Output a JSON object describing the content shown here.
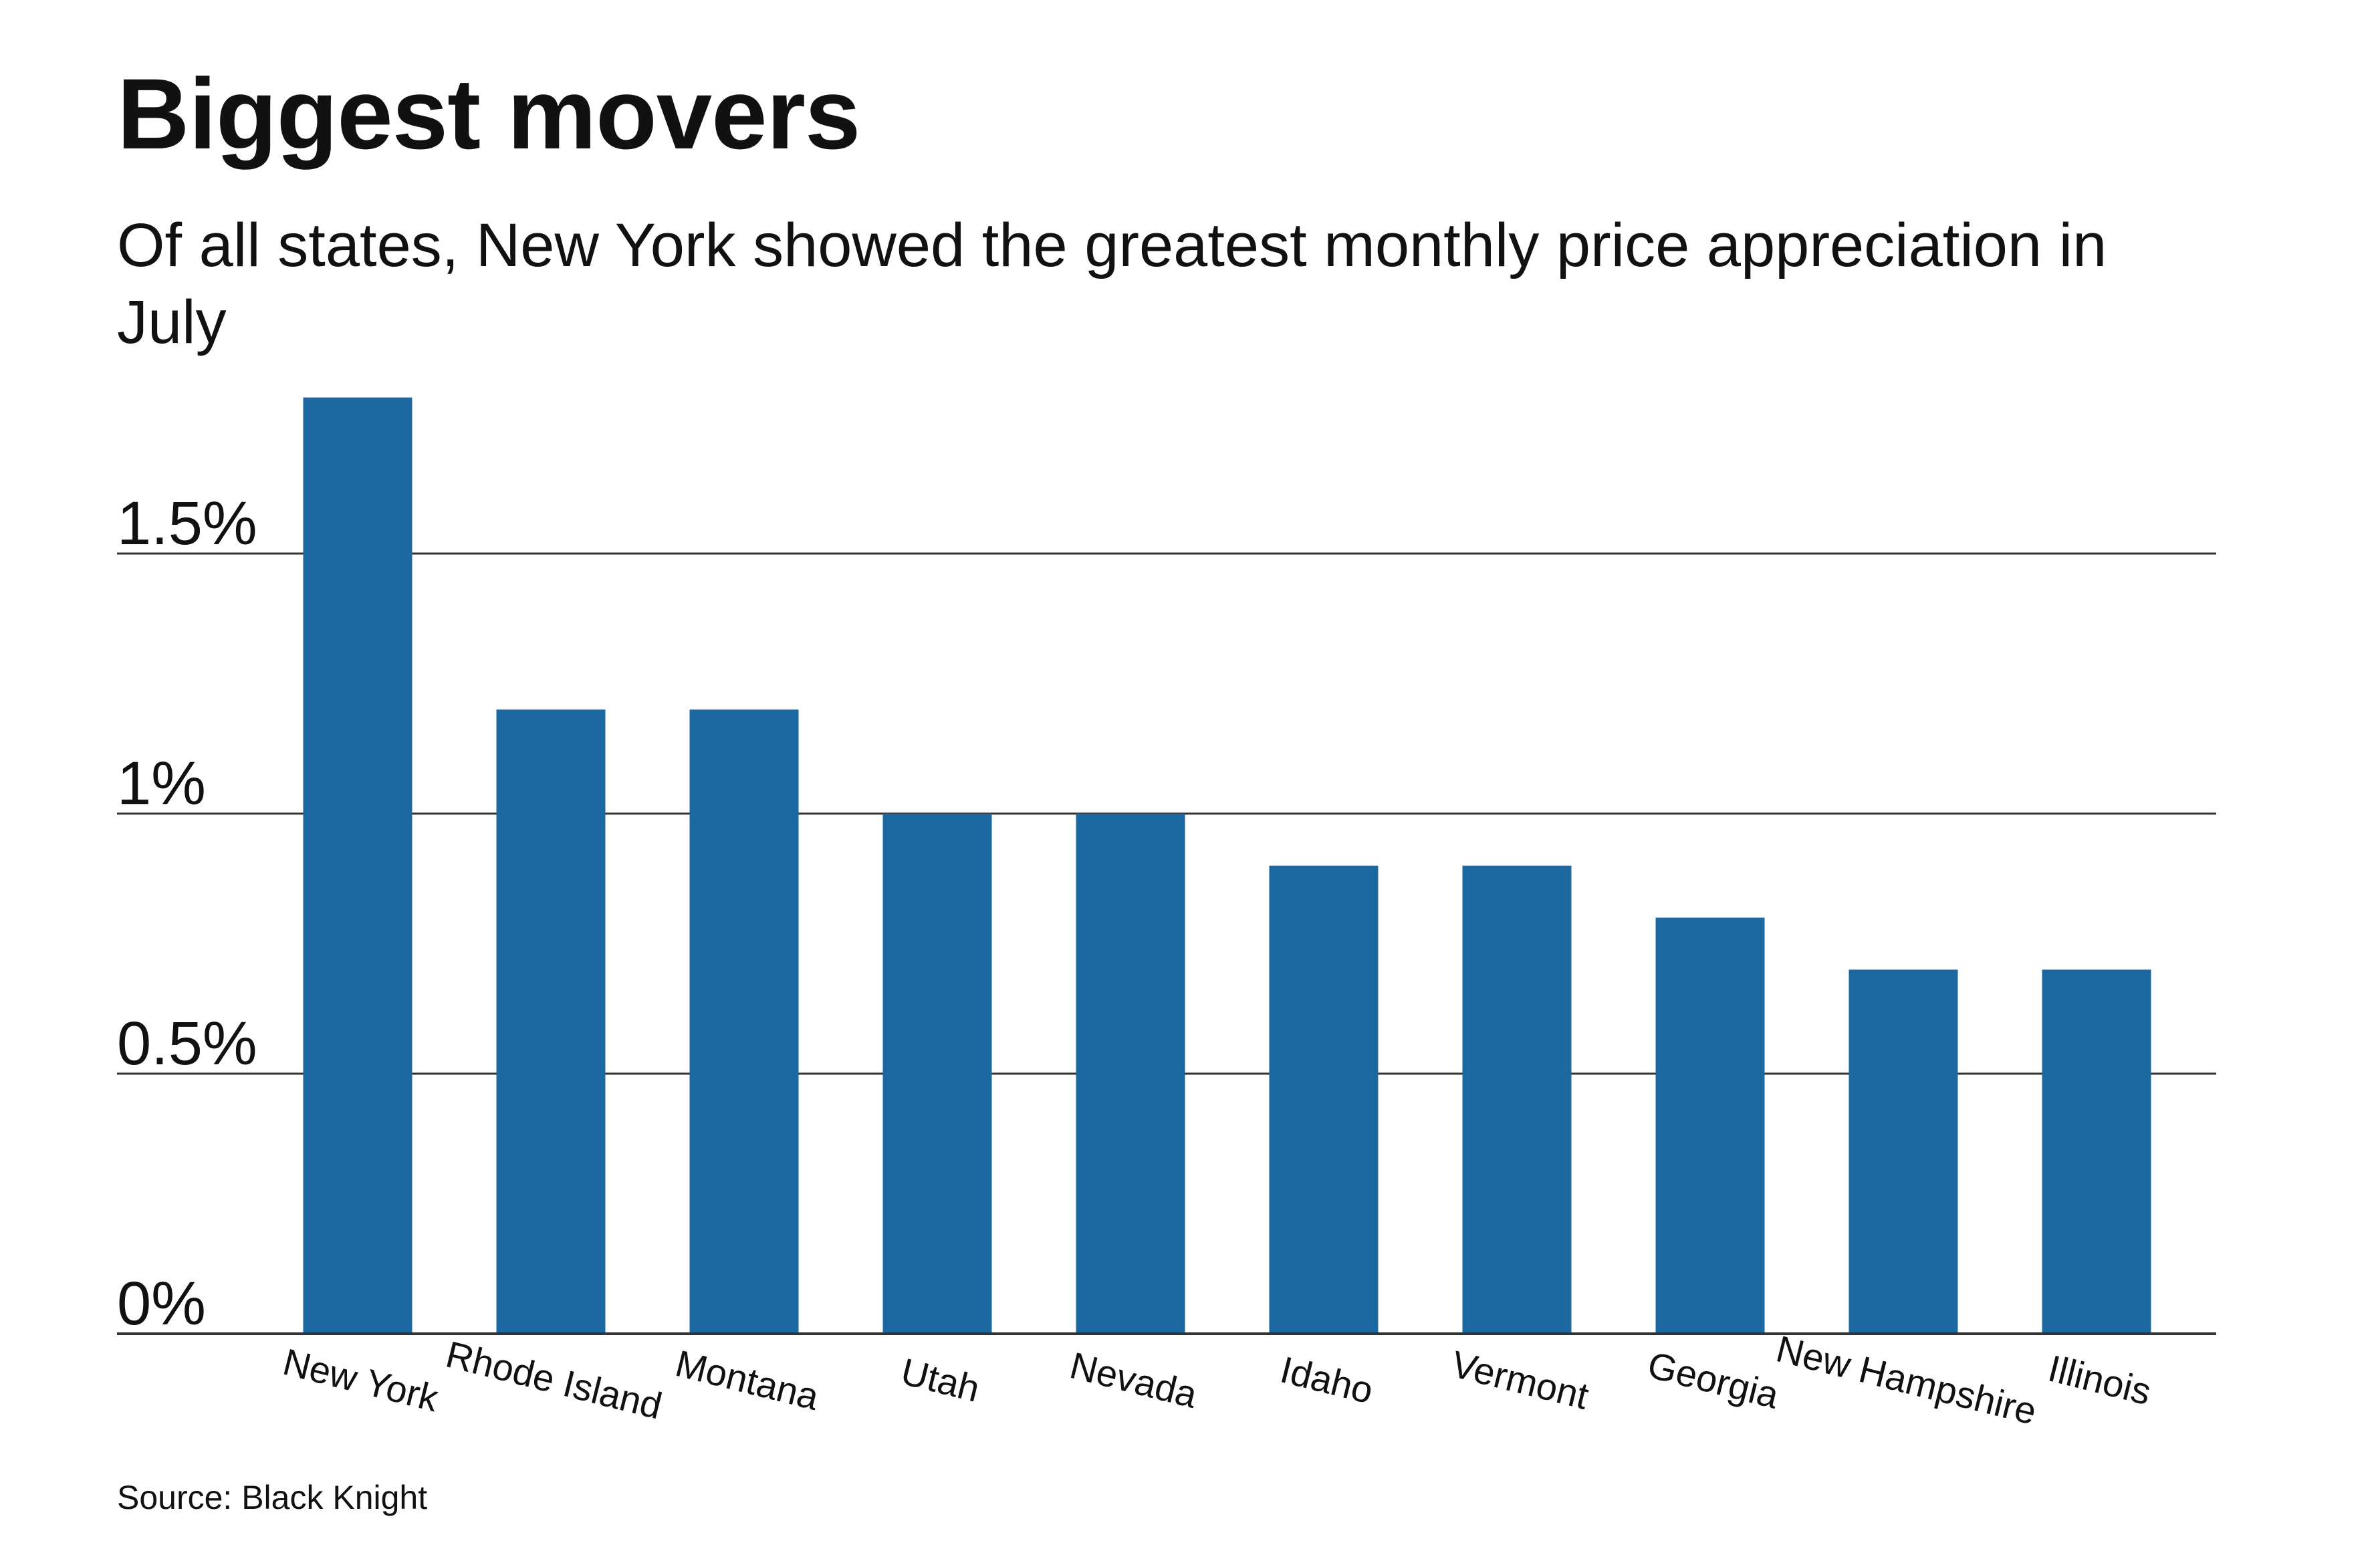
{
  "title": "Biggest movers",
  "subtitle": "Of all states, New York showed the greatest monthly price appreciation in July",
  "source": "Source: Black Knight",
  "colors": {
    "bar": "#1b679f",
    "grid": "#333333",
    "text": "#111111"
  },
  "chart_data": {
    "type": "bar",
    "title": "Biggest movers",
    "subtitle": "Of all states, New York showed the greatest monthly price appreciation in July",
    "categories": [
      "New York",
      "Rhode Island",
      "Montana",
      "Utah",
      "Nevada",
      "Idaho",
      "Vermont",
      "Georgia",
      "New Hampshire",
      "Illinois"
    ],
    "values": [
      1.8,
      1.2,
      1.2,
      1.0,
      1.0,
      0.9,
      0.9,
      0.8,
      0.7,
      0.7
    ],
    "unit": "%",
    "xlabel": "",
    "ylabel": "",
    "ylim": [
      0,
      1.8
    ],
    "yticks": [
      0,
      0.5,
      1,
      1.5
    ],
    "ytick_labels": [
      "0%",
      "0.5%",
      "1%",
      "1.5%"
    ],
    "grid": true,
    "legend": "none"
  }
}
